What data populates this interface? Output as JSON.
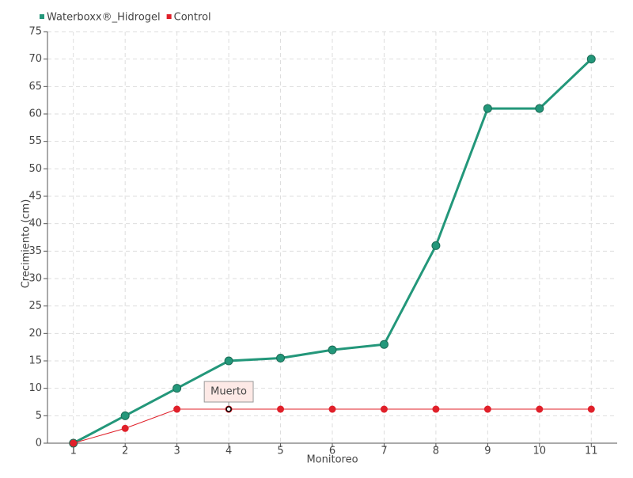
{
  "chart_data": {
    "type": "line",
    "x_label": "Monitoreo",
    "y_label": "Crecimiento (cm)",
    "categories": [
      "1",
      "2",
      "3",
      "4",
      "5",
      "6",
      "7",
      "8",
      "9",
      "10",
      "11"
    ],
    "series": [
      {
        "name": "Waterboxx®_Hidrogel",
        "color": "#23977a",
        "values": [
          0,
          5,
          10,
          15,
          15.5,
          17,
          18,
          36,
          61,
          61,
          70
        ]
      },
      {
        "name": "Control",
        "color": "#e0202a",
        "values": [
          0,
          2.7,
          6.2,
          6.2,
          6.2,
          6.2,
          6.2,
          6.2,
          6.2,
          6.2,
          6.2
        ]
      }
    ],
    "ylim": [
      0,
      75
    ],
    "yticks": [
      0,
      5,
      10,
      15,
      20,
      25,
      30,
      35,
      40,
      45,
      50,
      55,
      60,
      65,
      70,
      75
    ],
    "grid": true,
    "legend": "top-left",
    "annotations": [
      {
        "text": "Muerto",
        "series": "Control",
        "x": "4"
      }
    ]
  }
}
